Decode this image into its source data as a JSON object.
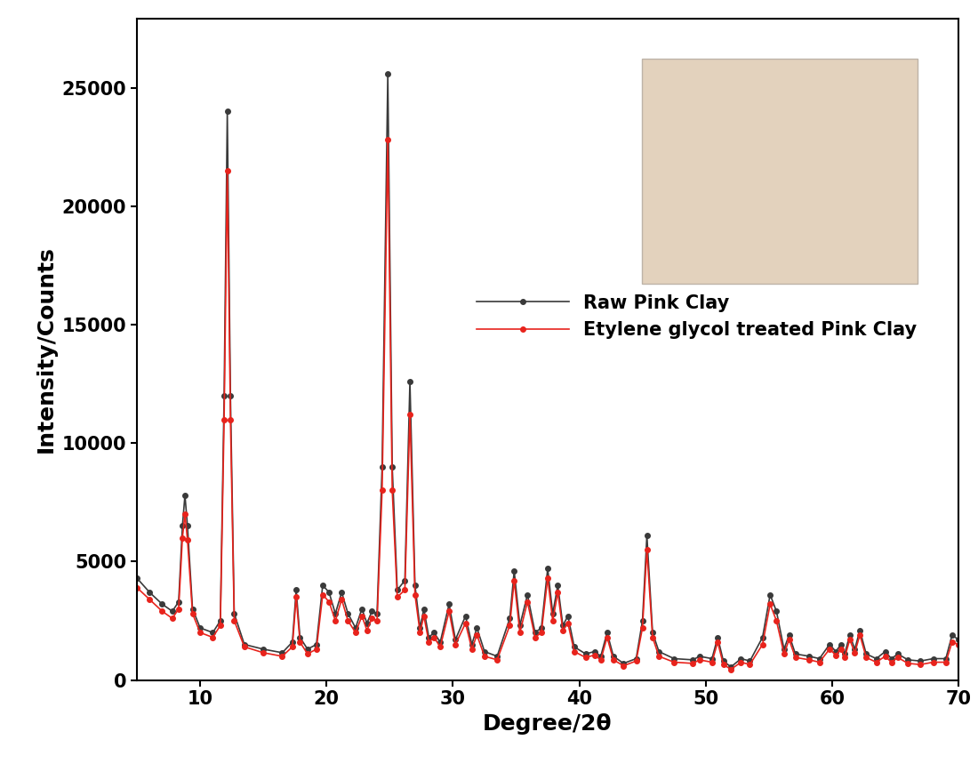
{
  "chart_data": {
    "type": "line",
    "x_label": "Degree/2θ",
    "y_label": "Intensity/Counts",
    "x": [
      5,
      6,
      7,
      7.8,
      8.3,
      8.6,
      8.8,
      9.0,
      9.4,
      10,
      11,
      11.6,
      11.9,
      12.15,
      12.4,
      12.7,
      13.5,
      15,
      16.5,
      17.3,
      17.6,
      17.9,
      18.5,
      19.2,
      19.7,
      20.2,
      20.7,
      21.2,
      21.7,
      22.3,
      22.8,
      23.2,
      23.6,
      24.0,
      24.4,
      24.85,
      25.2,
      25.6,
      26.2,
      26.6,
      27.0,
      27.4,
      27.7,
      28.1,
      28.5,
      29.0,
      29.7,
      30.2,
      31.0,
      31.5,
      31.9,
      32.5,
      33.5,
      34.5,
      34.85,
      35.3,
      35.9,
      36.5,
      37.0,
      37.5,
      37.9,
      38.3,
      38.7,
      39.1,
      39.6,
      40.5,
      41.2,
      41.7,
      42.2,
      42.7,
      43.5,
      44.5,
      45.0,
      45.35,
      45.8,
      46.3,
      47.5,
      49.0,
      49.5,
      50.5,
      50.95,
      51.4,
      52.0,
      52.8,
      53.5,
      54.5,
      55.1,
      55.6,
      56.2,
      56.6,
      57.1,
      58.2,
      59.0,
      59.8,
      60.3,
      60.7,
      61.0,
      61.4,
      61.8,
      62.2,
      62.7,
      63.5,
      64.2,
      64.7,
      65.2,
      66.0,
      67.0,
      68.0,
      69.0,
      69.5,
      70
    ],
    "series": [
      {
        "name": "Raw Pink Clay",
        "color": "#3a3a3a",
        "marker": "o",
        "line_style": "solid",
        "values": [
          4300,
          3700,
          3200,
          2900,
          3300,
          6500,
          7800,
          6500,
          3000,
          2200,
          2000,
          2500,
          12000,
          24000,
          12000,
          2800,
          1500,
          1300,
          1150,
          1600,
          3800,
          1800,
          1300,
          1500,
          4000,
          3700,
          2800,
          3700,
          2800,
          2200,
          3000,
          2400,
          2900,
          2800,
          9000,
          25600,
          9000,
          3800,
          4200,
          12600,
          4000,
          2200,
          3000,
          1800,
          2000,
          1600,
          3200,
          1700,
          2700,
          1500,
          2200,
          1200,
          1000,
          2600,
          4600,
          2300,
          3600,
          2000,
          2200,
          4700,
          2800,
          4000,
          2300,
          2700,
          1400,
          1100,
          1200,
          1000,
          2000,
          1000,
          700,
          900,
          2500,
          6100,
          2000,
          1200,
          900,
          850,
          1000,
          900,
          1800,
          800,
          550,
          900,
          800,
          1800,
          3600,
          2900,
          1300,
          1900,
          1100,
          1000,
          900,
          1500,
          1200,
          1500,
          1100,
          1900,
          1300,
          2100,
          1100,
          900,
          1200,
          900,
          1100,
          850,
          800,
          900,
          900,
          1900,
          1700
        ]
      },
      {
        "name": "Etylene glycol treated Pink Clay",
        "color": "#e8231c",
        "marker": "o",
        "line_style": "solid",
        "values": [
          3900,
          3400,
          2900,
          2600,
          3000,
          6000,
          7000,
          5900,
          2800,
          2000,
          1800,
          2300,
          11000,
          21500,
          11000,
          2500,
          1400,
          1150,
          1000,
          1400,
          3500,
          1600,
          1100,
          1300,
          3600,
          3300,
          2500,
          3400,
          2500,
          2000,
          2700,
          2100,
          2600,
          2500,
          8000,
          22800,
          8000,
          3500,
          3800,
          11200,
          3600,
          2000,
          2700,
          1600,
          1800,
          1400,
          2900,
          1500,
          2400,
          1300,
          1900,
          1000,
          850,
          2300,
          4200,
          2000,
          3300,
          1800,
          2000,
          4300,
          2500,
          3700,
          2100,
          2400,
          1200,
          950,
          1050,
          850,
          1800,
          850,
          600,
          800,
          2200,
          5500,
          1800,
          1000,
          750,
          700,
          850,
          750,
          1600,
          650,
          450,
          750,
          650,
          1500,
          3200,
          2500,
          1100,
          1700,
          950,
          850,
          750,
          1300,
          1050,
          1300,
          950,
          1700,
          1150,
          1900,
          950,
          750,
          1000,
          750,
          950,
          700,
          650,
          750,
          750,
          1600,
          1500
        ]
      }
    ],
    "xlim": [
      5,
      70
    ],
    "xticks": [
      10,
      20,
      30,
      40,
      50,
      60,
      70
    ],
    "ylim": [
      0,
      27900
    ],
    "yticks": [
      0,
      5000,
      10000,
      15000,
      20000,
      25000
    ],
    "legend": "center right"
  }
}
